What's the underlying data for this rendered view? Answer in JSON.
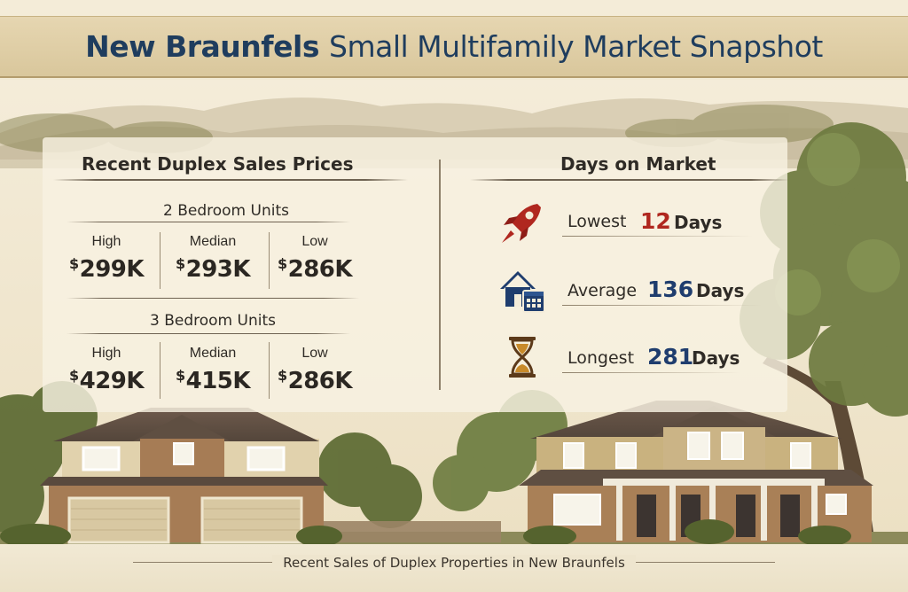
{
  "title": {
    "bold": "New Braunfels",
    "rest": "Small Multifamily Market Snapshot"
  },
  "sales": {
    "heading": "Recent Duplex Sales Prices",
    "groups": [
      {
        "label": "2 Bedroom Units",
        "cells": [
          {
            "label": "High",
            "currency": "$",
            "value": "299K"
          },
          {
            "label": "Median",
            "currency": "$",
            "value": "293K"
          },
          {
            "label": "Low",
            "currency": "$",
            "value": "286K"
          }
        ]
      },
      {
        "label": "3 Bedroom Units",
        "cells": [
          {
            "label": "High",
            "currency": "$",
            "value": "429K"
          },
          {
            "label": "Median",
            "currency": "$",
            "value": "415K"
          },
          {
            "label": "Low",
            "currency": "$",
            "value": "286K"
          }
        ]
      }
    ]
  },
  "dom": {
    "heading": "Days on Market",
    "rows": [
      {
        "label": "Lowest",
        "value": "12",
        "unit": "Days",
        "color": "#b0271f",
        "icon": "rocket-icon"
      },
      {
        "label": "Average",
        "value": "136",
        "unit": "Days",
        "color": "#1f3d6e",
        "icon": "house-calendar-icon"
      },
      {
        "label": "Longest",
        "value": "281",
        "unit": "Days",
        "color": "#1f3d6e",
        "icon": "hourglass-icon"
      }
    ]
  },
  "footer": {
    "text": "Recent Sales of Duplex Properties in New Braunfels"
  },
  "colors": {
    "title": "#1f3d5e",
    "accent_red": "#b0271f",
    "accent_blue": "#1f3d6e",
    "background": "#f1e8d2"
  }
}
